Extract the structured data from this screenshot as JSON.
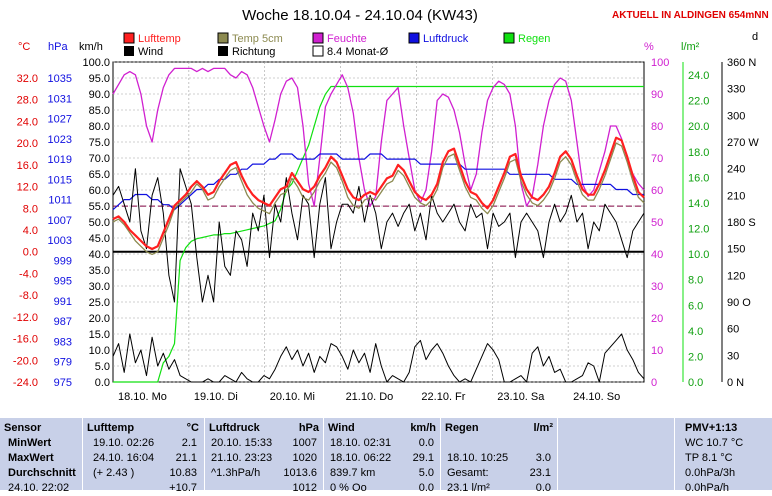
{
  "header": {
    "title": "Woche 18.10.04 - 24.10.04 (KW43)",
    "location": "AKTUELL IN ALDINGEN 654mNN"
  },
  "legend": [
    {
      "label": "Lufttemp",
      "color": "#ff2020"
    },
    {
      "label": "Temp 5cm",
      "color": "#8c8a50"
    },
    {
      "label": "Feuchte",
      "color": "#d020d0"
    },
    {
      "label": "Luftdruck",
      "color": "#1010e0"
    },
    {
      "label": "Regen",
      "color": "#10e010"
    },
    {
      "label": "Wind",
      "color": "#000000"
    },
    {
      "label": "Richtung",
      "color": "#000000"
    },
    {
      "label": "8.4 Monat-Ø",
      "color": "#ffffff"
    }
  ],
  "axis_units": {
    "temp": "°C",
    "press": "hPa",
    "wind": "km/h",
    "hum": "%",
    "rain": "l/m²",
    "dir": "d"
  },
  "chart_data": {
    "type": "line",
    "title": "Woche 18.10.04 - 24.10.04 (KW43)",
    "x_labels": [
      "18.10. Mo",
      "19.10. Di",
      "20.10. Mi",
      "21.10. Do",
      "22.10. Fr",
      "23.10. Sa",
      "24.10. So"
    ],
    "axes": {
      "temp_ticks": [
        "32.0",
        "28.0",
        "24.0",
        "20.0",
        "16.0",
        "12.0",
        "8.0",
        "4.0",
        "0.0",
        "-4.0",
        "-8.0",
        "-12.0",
        "-16.0",
        "-20.0",
        "-24.0"
      ],
      "press_ticks": [
        "1035",
        "1031",
        "1027",
        "1023",
        "1019",
        "1015",
        "1011",
        "1007",
        "1003",
        "999",
        "995",
        "991",
        "987",
        "983",
        "979",
        "975"
      ],
      "wind_ticks": [
        "100.0",
        "95.0",
        "90.0",
        "85.0",
        "80.0",
        "75.0",
        "70.0",
        "65.0",
        "60.0",
        "55.0",
        "50.0",
        "45.0",
        "40.0",
        "35.0",
        "30.0",
        "25.0",
        "20.0",
        "15.0",
        "10.0",
        "5.0",
        "0.0"
      ],
      "hum_ticks": [
        "100",
        "90",
        "80",
        "70",
        "60",
        "50",
        "40",
        "30",
        "20",
        "10",
        "0"
      ],
      "rain_ticks": [
        "24.0",
        "22.0",
        "20.0",
        "18.0",
        "16.0",
        "14.0",
        "12.0",
        "10.0",
        "8.0",
        "6.0",
        "4.0",
        "2.0",
        "0.0"
      ],
      "dir_ticks": [
        "360 N",
        "330",
        "300",
        "270 W",
        "240",
        "210",
        "180 S",
        "150",
        "120",
        "90 O",
        "60",
        "30",
        "0 N"
      ],
      "temp_range": [
        -24,
        32
      ],
      "press_range": [
        975,
        1035
      ],
      "wind_range": [
        0,
        100
      ],
      "hum_range": [
        0,
        100
      ],
      "rain_range": [
        0,
        24
      ],
      "dir_range": [
        0,
        360
      ]
    },
    "monthly_avg_temp": 8.4,
    "series": [
      {
        "name": "Lufttemp",
        "unit": "°C",
        "values": [
          6.0,
          6.5,
          5.5,
          4.0,
          3.0,
          2.0,
          1.0,
          0.5,
          1.0,
          3.5,
          6.0,
          8.5,
          9.5,
          10.5,
          12.0,
          13.0,
          12.0,
          10.5,
          11.0,
          13.0,
          14.5,
          16.0,
          16.5,
          14.0,
          12.0,
          10.5,
          9.5,
          9.0,
          8.5,
          10.0,
          11.5,
          12.0,
          14.5,
          13.0,
          11.5,
          11.0,
          12.0,
          14.0,
          15.5,
          17.5,
          16.5,
          14.0,
          11.5,
          10.0,
          9.5,
          10.5,
          11.0,
          10.5,
          12.0,
          13.5,
          14.0,
          16.0,
          15.0,
          13.0,
          11.0,
          10.0,
          9.5,
          10.5,
          12.5,
          16.5,
          18.5,
          19.0,
          16.0,
          13.0,
          11.0,
          10.5,
          9.0,
          8.0,
          9.5,
          12.0,
          14.5,
          17.5,
          18.0,
          14.0,
          11.5,
          10.0,
          9.5,
          10.5,
          12.0,
          14.5,
          17.5,
          18.5,
          17.0,
          14.0,
          11.5,
          10.5,
          10.5,
          12.5,
          15.0,
          18.0,
          21.0,
          20.5,
          17.5,
          14.0,
          11.0,
          10.0
        ]
      },
      {
        "name": "Temp 5cm",
        "unit": "°C",
        "values": [
          5.5,
          6.0,
          5.0,
          3.5,
          2.0,
          1.0,
          0.0,
          -0.5,
          0.0,
          2.5,
          5.0,
          8.0,
          9.0,
          10.0,
          11.0,
          12.5,
          11.5,
          9.5,
          10.0,
          12.0,
          13.5,
          15.0,
          15.5,
          13.0,
          10.5,
          9.0,
          8.0,
          7.5,
          7.0,
          9.0,
          10.5,
          11.0,
          13.5,
          12.0,
          10.0,
          9.5,
          11.0,
          13.0,
          14.5,
          16.5,
          15.5,
          13.0,
          10.0,
          8.5,
          8.0,
          9.5,
          10.0,
          9.5,
          11.0,
          12.5,
          13.0,
          15.0,
          14.0,
          12.0,
          10.0,
          9.0,
          8.5,
          9.5,
          11.5,
          15.5,
          17.5,
          18.0,
          15.0,
          12.0,
          10.0,
          9.5,
          8.0,
          7.0,
          8.5,
          11.0,
          13.5,
          16.5,
          17.0,
          13.0,
          10.5,
          9.0,
          8.5,
          9.5,
          11.0,
          13.5,
          16.5,
          17.5,
          16.0,
          13.0,
          10.5,
          9.5,
          9.5,
          11.5,
          14.0,
          17.0,
          20.0,
          19.5,
          16.5,
          13.0,
          10.0,
          9.0
        ]
      },
      {
        "name": "Feuchte",
        "unit": "%",
        "values": [
          90,
          93,
          96,
          97,
          96,
          90,
          80,
          75,
          85,
          92,
          96,
          98,
          98,
          98,
          98,
          97,
          98,
          97,
          98,
          98,
          98,
          96,
          95,
          97,
          96,
          92,
          86,
          80,
          75,
          82,
          90,
          94,
          95,
          92,
          80,
          62,
          55,
          70,
          86,
          90,
          93,
          96,
          92,
          84,
          70,
          60,
          55,
          58,
          75,
          88,
          90,
          92,
          80,
          70,
          60,
          56,
          60,
          72,
          88,
          90,
          89,
          85,
          78,
          68,
          60,
          65,
          78,
          88,
          92,
          94,
          93,
          90,
          80,
          62,
          55,
          58,
          68,
          80,
          88,
          93,
          95,
          94,
          88,
          75,
          62,
          58,
          60,
          66,
          72,
          80,
          80,
          76,
          70,
          65,
          62,
          60
        ]
      },
      {
        "name": "Luftdruck",
        "unit": "hPa",
        "values": [
          1009,
          1010,
          1011,
          1011,
          1012,
          1012,
          1012,
          1011,
          1011,
          1010,
          1010,
          1009,
          1010,
          1011,
          1012,
          1013,
          1013,
          1014,
          1014,
          1015,
          1015,
          1016,
          1016,
          1017,
          1017,
          1018,
          1018,
          1018,
          1019,
          1019,
          1020,
          1020,
          1020,
          1019,
          1019,
          1019,
          1019,
          1020,
          1020,
          1020,
          1020,
          1019,
          1019,
          1019,
          1019,
          1019,
          1020,
          1020,
          1020,
          1019,
          1019,
          1019,
          1019,
          1019,
          1019,
          1018,
          1018,
          1018,
          1018,
          1018,
          1018,
          1018,
          1018,
          1017,
          1017,
          1017,
          1017,
          1017,
          1017,
          1017,
          1017,
          1016,
          1016,
          1016,
          1016,
          1016,
          1016,
          1016,
          1016,
          1015,
          1015,
          1015,
          1015,
          1014,
          1014,
          1014,
          1014,
          1014,
          1014,
          1014,
          1013,
          1013,
          1013,
          1012,
          1012,
          1012
        ]
      },
      {
        "name": "Regen",
        "unit": "l/m²",
        "values": [
          0,
          0,
          0,
          0,
          0,
          0,
          0,
          0,
          0,
          1.5,
          2.0,
          3.0,
          9.5,
          10.5,
          11.0,
          11.2,
          11.3,
          11.4,
          11.5,
          11.5,
          11.6,
          11.6,
          11.7,
          11.8,
          11.9,
          12.0,
          12.1,
          12.2,
          12.4,
          12.6,
          13.5,
          15.0,
          15.5,
          16.5,
          17.5,
          18.5,
          20.0,
          21.5,
          22.5,
          23.1,
          23.1,
          23.1,
          23.1,
          23.1,
          23.1,
          23.1,
          23.1,
          23.1,
          23.1,
          23.1,
          23.1,
          23.1,
          23.1,
          23.1,
          23.1,
          23.1,
          23.1,
          23.1,
          23.1,
          23.1,
          23.1,
          23.1,
          23.1,
          23.1,
          23.1,
          23.1,
          23.1,
          23.1,
          23.1,
          23.1,
          23.1,
          23.1,
          23.1,
          23.1,
          23.1,
          23.1,
          23.1,
          23.1,
          23.1,
          23.1,
          23.1,
          23.1,
          23.1,
          23.1,
          23.1,
          23.1,
          23.1,
          23.1,
          23.1,
          23.1,
          23.1,
          23.1,
          23.1,
          23.1,
          23.1,
          23.1
        ]
      },
      {
        "name": "Wind",
        "unit": "km/h",
        "values": [
          8,
          12,
          3,
          15,
          6,
          10,
          2,
          14,
          5,
          9,
          4,
          7,
          2,
          1,
          0,
          0,
          0,
          1,
          0,
          0,
          2,
          1,
          0,
          3,
          1,
          0,
          0,
          2,
          1,
          4,
          8,
          11,
          7,
          10,
          5,
          9,
          3,
          8,
          6,
          12,
          11,
          8,
          4,
          10,
          6,
          9,
          3,
          12,
          5,
          0,
          2,
          1,
          0,
          3,
          11,
          13,
          7,
          10,
          12,
          9,
          5,
          2,
          0,
          1,
          0,
          4,
          8,
          12,
          10,
          7,
          0,
          0,
          1,
          2,
          0,
          9,
          11,
          5,
          8,
          3,
          4,
          0,
          0,
          1,
          2,
          6,
          5,
          0,
          9,
          11,
          13,
          15,
          10,
          7,
          3,
          1
        ]
      },
      {
        "name": "Richtung",
        "unit": "°",
        "values": [
          210,
          220,
          200,
          180,
          240,
          170,
          150,
          210,
          230,
          190,
          120,
          90,
          240,
          220,
          200,
          140,
          90,
          120,
          90,
          180,
          130,
          120,
          170,
          160,
          130,
          190,
          170,
          210,
          140,
          200,
          180,
          230,
          190,
          160,
          210,
          200,
          140,
          200,
          230,
          150,
          180,
          200,
          200,
          190,
          220,
          180,
          210,
          190,
          150,
          180,
          190,
          175,
          190,
          200,
          170,
          190,
          160,
          210,
          190,
          180,
          190,
          200,
          180,
          170,
          200,
          185,
          190,
          150,
          190,
          175,
          180,
          190,
          140,
          180,
          190,
          180,
          170,
          140,
          180,
          200,
          180,
          190,
          210,
          180,
          190,
          150,
          180,
          170,
          200,
          190,
          180,
          160,
          140,
          170,
          180,
          190
        ]
      }
    ]
  },
  "stats": {
    "sensor": {
      "title": "Sensor",
      "rows": [
        "MinWert",
        "MaxWert",
        "Durchschnitt",
        "24.10. 22:02"
      ]
    },
    "lufttemp": {
      "title": "Lufttemp",
      "unit": "°C",
      "rows": [
        [
          "19.10.  02:26",
          "2.1"
        ],
        [
          "24.10.  16:04",
          "21.1"
        ],
        [
          "(+ 2.43 )",
          "10.83"
        ],
        [
          "",
          "+10.7"
        ]
      ]
    },
    "luftdruck": {
      "title": "Luftdruck",
      "unit": "hPa",
      "rows": [
        [
          "20.10.  15:33",
          "1007"
        ],
        [
          "21.10.  23:23",
          "1020"
        ],
        [
          "^1.3hPa/h",
          "1013.6"
        ],
        [
          "",
          "1012"
        ]
      ]
    },
    "wind": {
      "title": "Wind",
      "unit": "km/h",
      "rows": [
        [
          "18.10.  02:31",
          "0.0"
        ],
        [
          "18.10.  06:22",
          "29.1"
        ],
        [
          "839.7 km",
          "5.0"
        ],
        [
          "0 %  Oo",
          "0.0"
        ]
      ]
    },
    "regen": {
      "title": "Regen",
      "unit": "l/m²",
      "rows": [
        [
          "",
          ""
        ],
        [
          "18.10.  10:25",
          "3.0"
        ],
        [
          "Gesamt:",
          "23.1"
        ],
        [
          "23.1 l/m²",
          "0.0"
        ]
      ]
    },
    "pmv": {
      "title": "PMV+1:13",
      "rows": [
        "WC 10.7 °C",
        "TP 8.1 °C",
        "0.0hPa/3h",
        "0.0hPa/h"
      ]
    }
  }
}
